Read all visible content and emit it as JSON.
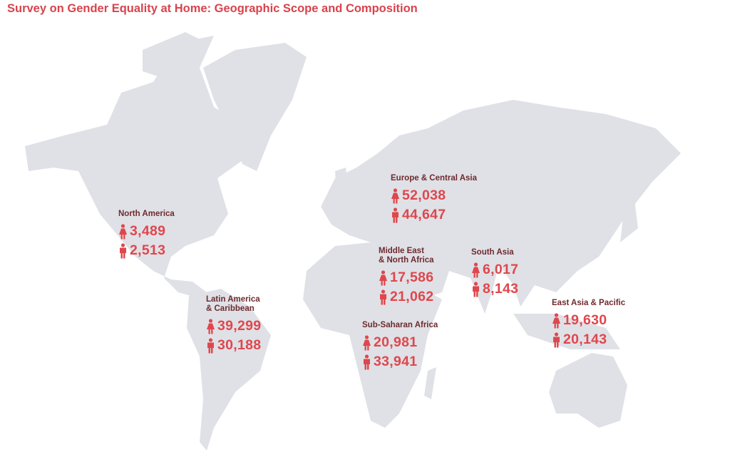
{
  "title": "Survey on Gender Equality at Home: Geographic Scope and Composition",
  "colors": {
    "title": "#d8434c",
    "region_name": "#6e2a2e",
    "number": "#df474d",
    "land": "#dfe1e6"
  },
  "icons": {
    "female": "female-person-icon",
    "male": "male-person-icon"
  },
  "regions": [
    {
      "name": "North America",
      "female": "3,489",
      "male": "2,513"
    },
    {
      "name": "Latin America\n& Caribbean",
      "female": "39,299",
      "male": "30,188"
    },
    {
      "name": "Europe & Central Asia",
      "female": "52,038",
      "male": "44,647"
    },
    {
      "name": "Middle East\n& North Africa",
      "female": "17,586",
      "male": "21,062"
    },
    {
      "name": "South Asia",
      "female": "6,017",
      "male": "8,143"
    },
    {
      "name": "Sub-Saharan Africa",
      "female": "20,981",
      "male": "33,941"
    },
    {
      "name": "East Asia & Pacific",
      "female": "19,630",
      "male": "20,143"
    }
  ]
}
